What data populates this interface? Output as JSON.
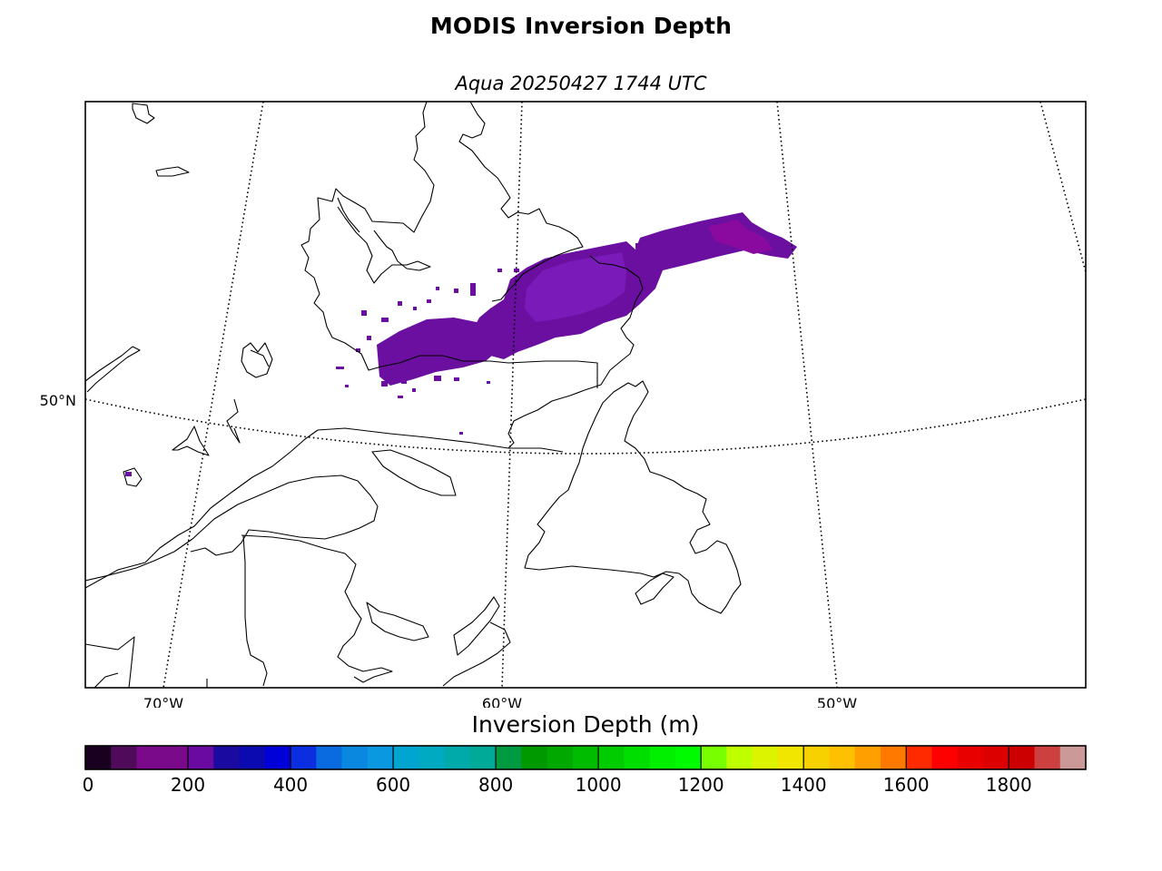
{
  "title": "MODIS Inversion Depth",
  "subtitle": "Aqua 20250427 1744 UTC",
  "map": {
    "projection": "conic",
    "latitude_label": "50°N",
    "longitude_labels": [
      "70°W",
      "60°W",
      "50°W"
    ],
    "graticule_style": "dotted",
    "coastline_color": "#000000",
    "data_region": "Labrador / Quebec North Shore to Labrador Sea",
    "data_range_m": "100-250",
    "data_color": "#6a0fa0"
  },
  "colorbar": {
    "label": "Inversion Depth (m)",
    "min": 0,
    "max": 1950,
    "step": 50,
    "tick_labels": [
      "0",
      "200",
      "400",
      "600",
      "800",
      "1000",
      "1200",
      "1400",
      "1600",
      "1800"
    ],
    "tick_values": [
      0,
      200,
      400,
      600,
      800,
      1000,
      1200,
      1400,
      1600,
      1800
    ],
    "colors": [
      "#1a0020",
      "#500a5a",
      "#7a0a8a",
      "#7a0a8a",
      "#6a0aa0",
      "#1a0aa0",
      "#0a0ab0",
      "#0000d8",
      "#0a2ee0",
      "#0a6ae0",
      "#0a88e0",
      "#0a98e0",
      "#00a6d0",
      "#00aac0",
      "#00aaaa",
      "#00aa98",
      "#009a40",
      "#009a00",
      "#00a800",
      "#00bc00",
      "#00cc00",
      "#00de00",
      "#00f000",
      "#00fa00",
      "#78ff00",
      "#c0ff00",
      "#dcf400",
      "#f0e600",
      "#f8d200",
      "#ffc000",
      "#ffa000",
      "#ff7800",
      "#ff2a00",
      "#ff0000",
      "#e80000",
      "#dc0000",
      "#cc0000",
      "#cc4040",
      "#cc9999"
    ]
  }
}
